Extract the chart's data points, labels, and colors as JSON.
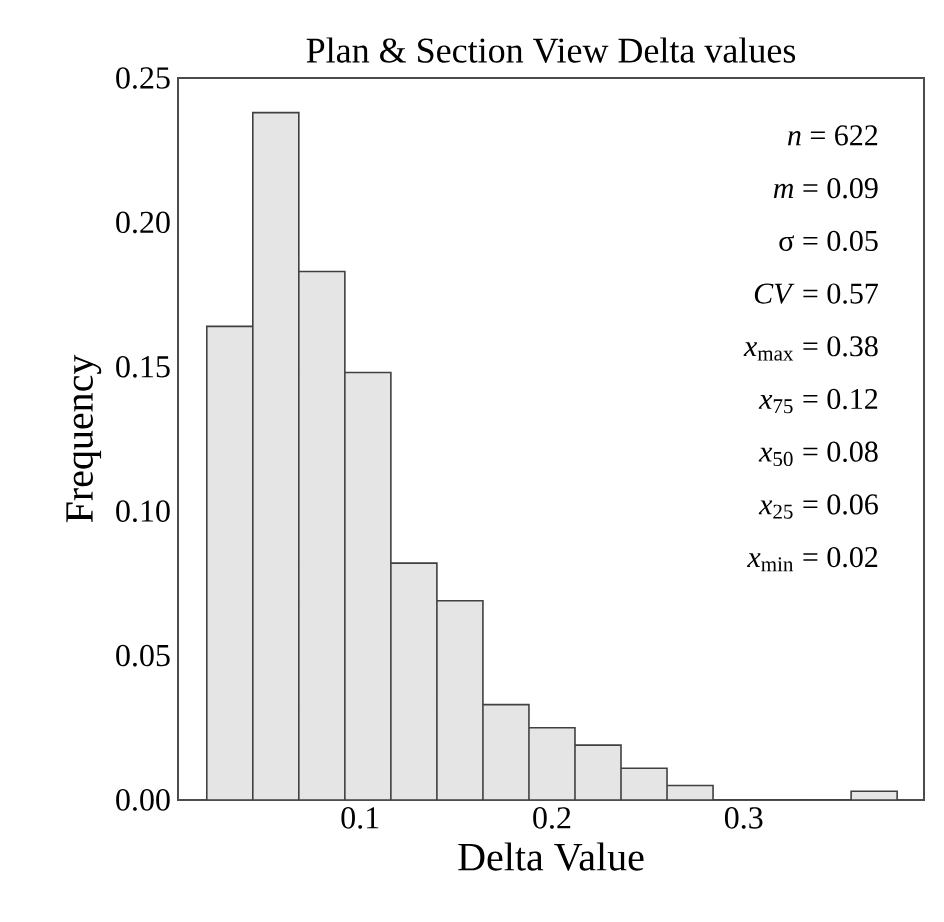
{
  "chart_data": {
    "type": "histogram",
    "title": "Plan & Section View Delta values",
    "xlabel": "Delta Value",
    "ylabel": "Frequency",
    "bins": [
      0.02,
      0.044,
      0.068,
      0.092,
      0.116,
      0.14,
      0.164,
      0.188,
      0.212,
      0.236,
      0.26,
      0.284,
      0.308,
      0.332,
      0.356,
      0.38
    ],
    "values": [
      0.164,
      0.238,
      0.183,
      0.148,
      0.082,
      0.069,
      0.033,
      0.025,
      0.019,
      0.011,
      0.005,
      0,
      0,
      0,
      0.003
    ],
    "color": "#e5e5e5",
    "xlim": [
      0.005,
      0.394
    ],
    "ylim": [
      0,
      0.25
    ],
    "xticks": [
      0.1,
      0.2,
      0.3
    ],
    "yticks": [
      {
        "value": 0,
        "label": "0.00"
      },
      {
        "value": 0.05,
        "label": "0.05"
      },
      {
        "value": 0.1,
        "label": "0.10"
      },
      {
        "value": 0.15,
        "label": "0.15"
      },
      {
        "value": 0.2,
        "label": "0.20"
      },
      {
        "value": 0.25,
        "label": "0.25"
      }
    ],
    "grid": false,
    "annotations": [
      "*n* = 622",
      "*m* = 0.09",
      "σ = 0.05",
      "*CV* = 0.57",
      "*x*$_{max}$ = 0.38",
      "*x*$_{75}$ = 0.12",
      "*x*$_{50}$ = 0.08",
      "*x*$_{25}$ = 0.06",
      "*x*$_{min}$ = 0.02"
    ]
  }
}
